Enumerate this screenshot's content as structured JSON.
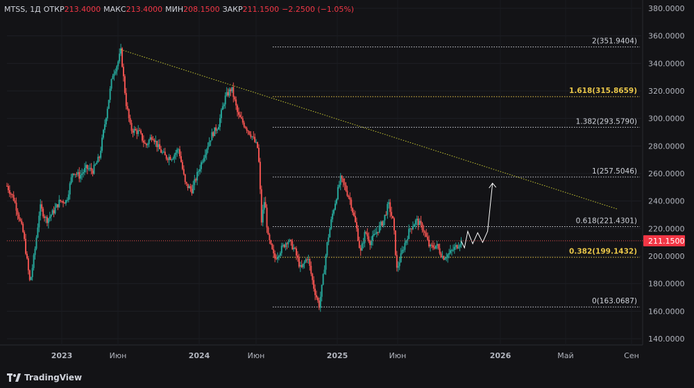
{
  "header": {
    "symbol": "MTSS, 1Д",
    "open_label": "ОТКР",
    "open": "213.4000",
    "high_label": "МАКС",
    "high": "213.4000",
    "low_label": "МИН",
    "low": "208.1500",
    "close_label": "ЗАКР",
    "close": "211.1500",
    "change": "−2.2500 (−1.05%)"
  },
  "branding": "TradingView",
  "colors": {
    "up": "#26a69a",
    "down": "#ef5350",
    "trendline": "#c8c832",
    "fib_highlight": "#e8c548",
    "background": "#131316"
  },
  "chart_data": {
    "type": "candlestick",
    "y_ticks": [
      "140.0000",
      "160.0000",
      "180.0000",
      "200.0000",
      "220.0000",
      "240.0000",
      "260.0000",
      "280.0000",
      "300.0000",
      "320.0000",
      "340.0000",
      "360.0000",
      "380.0000"
    ],
    "ylim": [
      136,
      382
    ],
    "x_ticks": [
      "2023",
      "Июн",
      "2024",
      "Июн",
      "2025",
      "Июн",
      "2026",
      "Май",
      "Сен"
    ],
    "current_price": "211.1500",
    "fib_levels": [
      {
        "label": "2(351.9404)",
        "value": 351.9404,
        "highlight": false
      },
      {
        "label": "1.618(315.8659)",
        "value": 315.8659,
        "highlight": true
      },
      {
        "label": "1.382(293.5790)",
        "value": 293.579,
        "highlight": false
      },
      {
        "label": "1(257.5046)",
        "value": 257.5046,
        "highlight": false
      },
      {
        "label": "0.618(221.4301)",
        "value": 221.4301,
        "highlight": false
      },
      {
        "label": "0.382(199.1432)",
        "value": 199.1432,
        "highlight": true
      },
      {
        "label": "0(163.0687)",
        "value": 163.0687,
        "highlight": false
      }
    ],
    "price_path": [
      [
        0,
        251
      ],
      [
        0.02,
        242
      ],
      [
        0.035,
        230
      ],
      [
        0.05,
        216
      ],
      [
        0.07,
        180
      ],
      [
        0.085,
        205
      ],
      [
        0.1,
        236
      ],
      [
        0.12,
        226
      ],
      [
        0.14,
        232
      ],
      [
        0.16,
        240
      ],
      [
        0.18,
        240
      ],
      [
        0.2,
        262
      ],
      [
        0.22,
        258
      ],
      [
        0.24,
        264
      ],
      [
        0.26,
        262
      ],
      [
        0.28,
        272
      ],
      [
        0.3,
        302
      ],
      [
        0.32,
        332
      ],
      [
        0.335,
        340
      ],
      [
        0.345,
        349
      ],
      [
        0.36,
        312
      ],
      [
        0.375,
        292
      ],
      [
        0.4,
        290
      ],
      [
        0.42,
        280
      ],
      [
        0.44,
        288
      ],
      [
        0.46,
        278
      ],
      [
        0.48,
        272
      ],
      [
        0.5,
        272
      ],
      [
        0.52,
        278
      ],
      [
        0.54,
        252
      ],
      [
        0.56,
        248
      ],
      [
        0.58,
        262
      ],
      [
        0.6,
        276
      ],
      [
        0.62,
        288
      ],
      [
        0.64,
        295
      ],
      [
        0.66,
        315
      ],
      [
        0.68,
        322
      ],
      [
        0.7,
        302
      ],
      [
        0.72,
        295
      ],
      [
        0.74,
        288
      ],
      [
        0.76,
        278
      ],
      [
        0.765,
        258
      ],
      [
        0.77,
        224
      ],
      [
        0.78,
        242
      ],
      [
        0.79,
        214
      ],
      [
        0.81,
        198
      ],
      [
        0.83,
        205
      ],
      [
        0.85,
        212
      ],
      [
        0.87,
        205
      ],
      [
        0.89,
        190
      ],
      [
        0.91,
        200
      ],
      [
        0.93,
        176
      ],
      [
        0.945,
        164
      ],
      [
        0.955,
        180
      ],
      [
        0.97,
        210
      ],
      [
        0.985,
        230
      ],
      [
        1.0,
        246
      ],
      [
        1.01,
        256
      ],
      [
        1.02,
        252
      ],
      [
        1.04,
        240
      ],
      [
        1.06,
        218
      ],
      [
        1.07,
        202
      ],
      [
        1.085,
        218
      ],
      [
        1.1,
        210
      ],
      [
        1.12,
        218
      ],
      [
        1.14,
        226
      ],
      [
        1.155,
        238
      ],
      [
        1.17,
        224
      ],
      [
        1.18,
        190
      ],
      [
        1.2,
        206
      ],
      [
        1.22,
        220
      ],
      [
        1.24,
        226
      ],
      [
        1.26,
        220
      ],
      [
        1.28,
        206
      ],
      [
        1.3,
        208
      ],
      [
        1.32,
        199
      ],
      [
        1.34,
        202
      ],
      [
        1.36,
        207
      ],
      [
        1.375,
        211
      ]
    ],
    "forecast_path": [
      [
        1.375,
        211
      ],
      [
        1.385,
        206
      ],
      [
        1.395,
        218
      ],
      [
        1.41,
        209
      ],
      [
        1.425,
        217
      ],
      [
        1.44,
        210
      ],
      [
        1.455,
        218
      ],
      [
        1.47,
        253
      ]
    ],
    "trendline": [
      [
        0.345,
        350
      ],
      [
        1.85,
        234
      ]
    ],
    "price_high_marker": 349,
    "price_low_marker": 163
  }
}
